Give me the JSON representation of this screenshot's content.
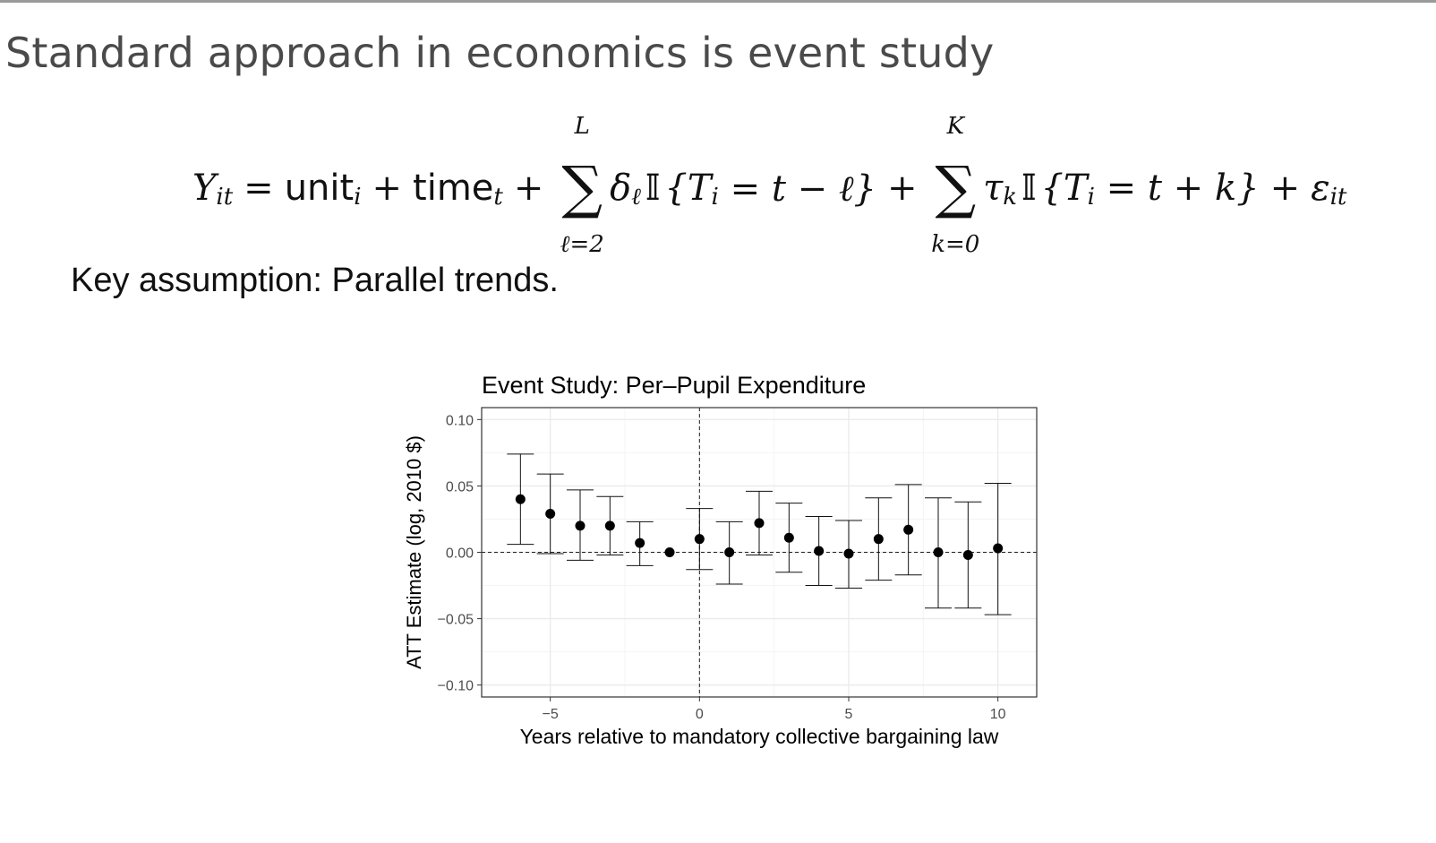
{
  "slide": {
    "title": "Standard approach in economics is event study",
    "key_assumption": "Key assumption: Parallel trends."
  },
  "equation": {
    "lhs": "Y",
    "lhs_sub": "it",
    "unit": "unit",
    "unit_sub": "i",
    "time": "time",
    "time_sub": "t",
    "sum1_upper": "L",
    "sum1_lower": "ℓ=2",
    "coef1": "δ",
    "coef1_sub": "ℓ",
    "indicator": "𝕀",
    "ind1": "{T",
    "ind1_sub": "i",
    "ind1_rest": " = t − ℓ}",
    "sum2_upper": "K",
    "sum2_lower": "k=0",
    "coef2": "τ",
    "coef2_sub": "k",
    "ind2": "{T",
    "ind2_sub": "i",
    "ind2_rest": " = t + k}",
    "error": "ε",
    "error_sub": "it"
  },
  "colors": {
    "title": "#4a4a4a",
    "text": "#111111",
    "grid": "#ebebeb",
    "point": "#000000"
  },
  "chart_data": {
    "type": "scatter",
    "title": "Event Study: Per–Pupil Expenditure",
    "xlabel": "Years relative to mandatory collective bargaining law",
    "ylabel": "ATT Estimate (log, 2010 $)",
    "xlim": [
      -7.3,
      11.3
    ],
    "ylim": [
      -0.109,
      0.109
    ],
    "x_ticks": [
      -5,
      0,
      5,
      10
    ],
    "x_tick_labels": [
      "−5",
      "0",
      "5",
      "10"
    ],
    "y_ticks": [
      0.1,
      0.05,
      0.0,
      -0.05,
      -0.1
    ],
    "y_tick_labels": [
      "0.10",
      "0.05",
      "0.00",
      "−0.05",
      "−0.10"
    ],
    "grid": true,
    "reference_lines": {
      "horizontal": 0,
      "vertical": 0
    },
    "points": [
      {
        "x": -6,
        "y": 0.04,
        "lo": 0.006,
        "hi": 0.074
      },
      {
        "x": -5,
        "y": 0.029,
        "lo": -0.001,
        "hi": 0.059
      },
      {
        "x": -4,
        "y": 0.02,
        "lo": -0.006,
        "hi": 0.047
      },
      {
        "x": -3,
        "y": 0.02,
        "lo": -0.002,
        "hi": 0.042
      },
      {
        "x": -2,
        "y": 0.007,
        "lo": -0.01,
        "hi": 0.023
      },
      {
        "x": -1,
        "y": 0.0,
        "lo": 0.0,
        "hi": 0.0
      },
      {
        "x": 0,
        "y": 0.01,
        "lo": -0.013,
        "hi": 0.033
      },
      {
        "x": 1,
        "y": 0.0,
        "lo": -0.024,
        "hi": 0.023
      },
      {
        "x": 2,
        "y": 0.022,
        "lo": -0.002,
        "hi": 0.046
      },
      {
        "x": 3,
        "y": 0.011,
        "lo": -0.015,
        "hi": 0.037
      },
      {
        "x": 4,
        "y": 0.001,
        "lo": -0.025,
        "hi": 0.027
      },
      {
        "x": 5,
        "y": -0.001,
        "lo": -0.027,
        "hi": 0.024
      },
      {
        "x": 6,
        "y": 0.01,
        "lo": -0.021,
        "hi": 0.041
      },
      {
        "x": 7,
        "y": 0.017,
        "lo": -0.017,
        "hi": 0.051
      },
      {
        "x": 8,
        "y": 0.0,
        "lo": -0.042,
        "hi": 0.041
      },
      {
        "x": 9,
        "y": -0.002,
        "lo": -0.042,
        "hi": 0.038
      },
      {
        "x": 10,
        "y": 0.003,
        "lo": -0.047,
        "hi": 0.052
      }
    ]
  }
}
